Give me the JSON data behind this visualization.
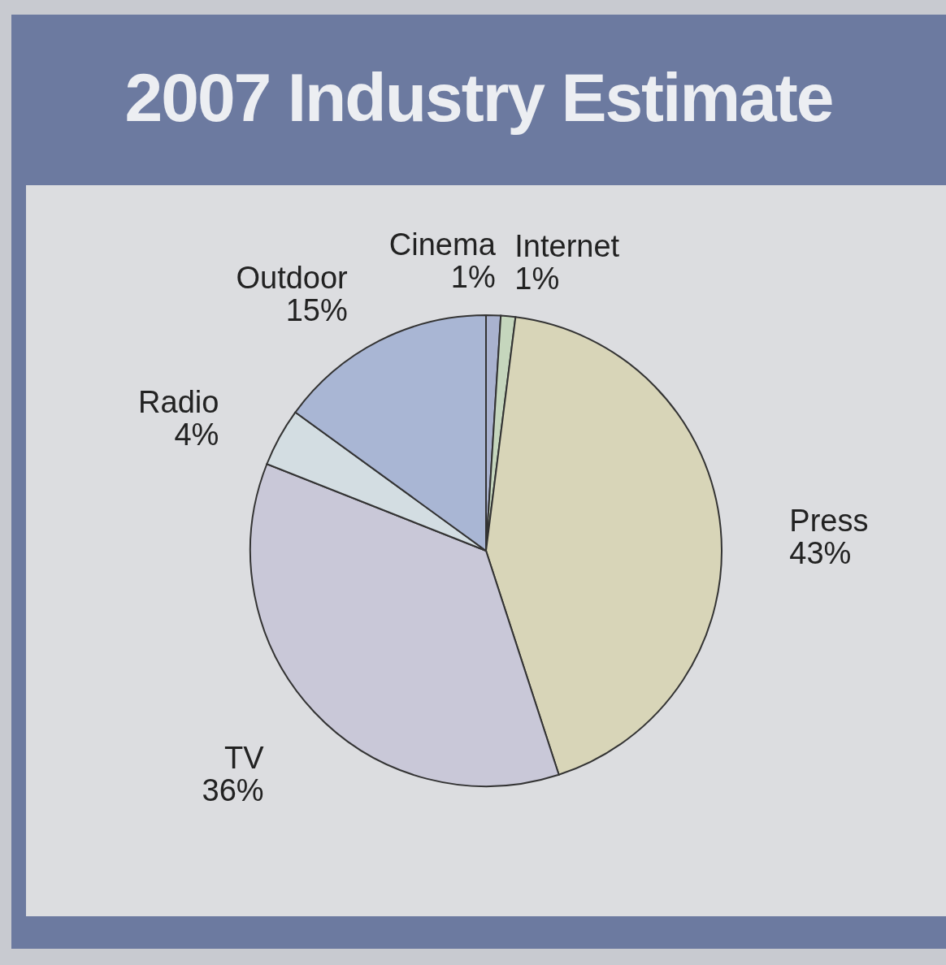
{
  "chart_data": {
    "type": "pie",
    "title": "2007 Industry Estimate",
    "categories": [
      "Cinema",
      "Internet",
      "Press",
      "TV",
      "Radio",
      "Outdoor"
    ],
    "values": [
      1,
      1,
      43,
      36,
      4,
      15
    ],
    "value_labels": [
      "1%",
      "1%",
      "43%",
      "36%",
      "4%",
      "15%"
    ],
    "colors": [
      "#a9b2cf",
      "#c5d6bd",
      "#d8d5b8",
      "#c9c8d8",
      "#d3dde2",
      "#a9b6d4"
    ],
    "legend": false
  }
}
